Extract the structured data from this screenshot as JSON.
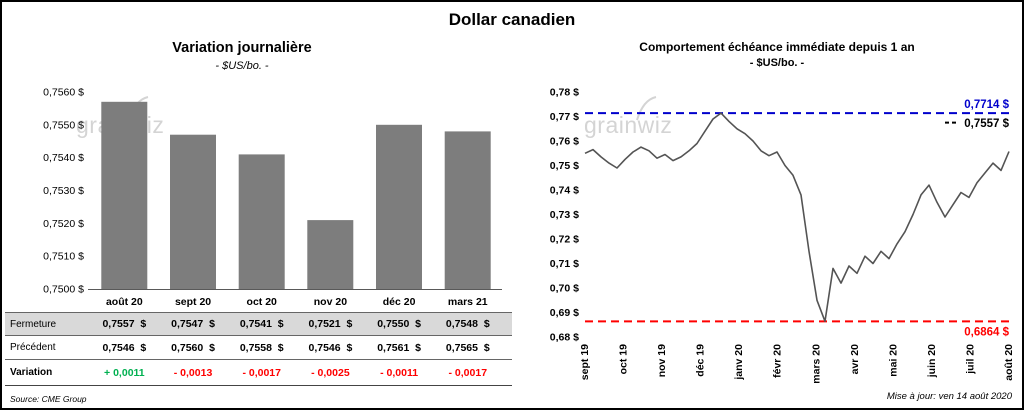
{
  "title": "Dollar canadien",
  "watermark": "grainwiz",
  "left": {
    "source": "Source: CME Group",
    "table": {
      "row_labels": [
        "Fermeture",
        "Précédent",
        "Variation"
      ],
      "fermeture": [
        "0,7557  $",
        "0,7547  $",
        "0,7541  $",
        "0,7521  $",
        "0,7550  $",
        "0,7548  $"
      ],
      "precedent": [
        "0,7546  $",
        "0,7560  $",
        "0,7558  $",
        "0,7546  $",
        "0,7561  $",
        "0,7565  $"
      ],
      "variation": [
        "+ 0,0011",
        "- 0,0013",
        "- 0,0017",
        "- 0,0025",
        "- 0,0011",
        "- 0,0017"
      ],
      "variation_colors": [
        "#00B050",
        "#FF0000",
        "#FF0000",
        "#FF0000",
        "#FF0000",
        "#FF0000"
      ]
    }
  },
  "right": {
    "updated": "Mise à jour: ven 14 août 2020"
  },
  "chart_data": [
    {
      "type": "bar",
      "title": "Variation journalière",
      "subtitle": "- $US/bo. -",
      "categories": [
        "août 20",
        "sept 20",
        "oct 20",
        "nov 20",
        "déc 20",
        "mars 21"
      ],
      "values": [
        0.7557,
        0.7547,
        0.7541,
        0.7521,
        0.755,
        0.7548
      ],
      "ylim": [
        0.75,
        0.756
      ],
      "yticks": [
        "0,7500 $",
        "0,7510 $",
        "0,7520 $",
        "0,7530 $",
        "0,7540 $",
        "0,7550 $",
        "0,7560 $"
      ],
      "bar_color": "#7d7d7d",
      "grid": false,
      "legend": "none"
    },
    {
      "type": "line",
      "title": "Comportement échéance immédiate depuis 1 an",
      "subtitle": "- $US/bo. -",
      "x_labels": [
        "sept 19",
        "oct 19",
        "nov 19",
        "déc 19",
        "janv 20",
        "févr 20",
        "mars 20",
        "avr 20",
        "mai 20",
        "juin 20",
        "juil 20",
        "août 20"
      ],
      "values": [
        0.755,
        0.7565,
        0.7535,
        0.751,
        0.749,
        0.7525,
        0.7555,
        0.7575,
        0.756,
        0.753,
        0.7545,
        0.752,
        0.7535,
        0.756,
        0.759,
        0.764,
        0.769,
        0.7714,
        0.768,
        0.765,
        0.763,
        0.76,
        0.756,
        0.754,
        0.7555,
        0.75,
        0.746,
        0.738,
        0.715,
        0.695,
        0.6864,
        0.708,
        0.702,
        0.709,
        0.706,
        0.713,
        0.71,
        0.715,
        0.712,
        0.718,
        0.723,
        0.73,
        0.738,
        0.742,
        0.735,
        0.729,
        0.734,
        0.739,
        0.737,
        0.743,
        0.747,
        0.751,
        0.748,
        0.7557
      ],
      "ylim": [
        0.68,
        0.78
      ],
      "yticks": [
        "0,68 $",
        "0,69 $",
        "0,70 $",
        "0,71 $",
        "0,72 $",
        "0,73 $",
        "0,74 $",
        "0,75 $",
        "0,76 $",
        "0,77 $",
        "0,78 $"
      ],
      "line_color": "#545454",
      "grid": false,
      "legend": "none",
      "ref_lines": [
        {
          "value": 0.7714,
          "label": "0,7714 $",
          "color": "#0000CC",
          "style": "dashed",
          "role": "high"
        },
        {
          "value": 0.7557,
          "label": "0,7557 $",
          "color": "#000000",
          "style": "dash-marker",
          "role": "last"
        },
        {
          "value": 0.6864,
          "label": "0,6864 $",
          "color": "#FF0000",
          "style": "dashed",
          "role": "low"
        }
      ]
    }
  ]
}
